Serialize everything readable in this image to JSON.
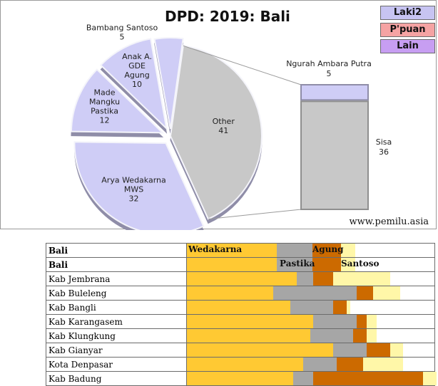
{
  "chart_data": [
    {
      "type": "pie",
      "title": "DPD: 2019: Bali",
      "legend": [
        {
          "label": "Laki2",
          "color": "#c7c4f2"
        },
        {
          "label": "P'puan",
          "color": "#f5a3a3"
        },
        {
          "label": "Lain",
          "color": "#c79ef2"
        }
      ],
      "slices": [
        {
          "name": "Arya Wedakarna MWS",
          "lines": [
            "Arya Wedakarna",
            "MWS"
          ],
          "value": 32,
          "color": "#cfcdf6"
        },
        {
          "name": "Made Mangku Pastika",
          "lines": [
            "Made",
            "Mangku",
            "Pastika"
          ],
          "value": 12,
          "color": "#cfcdf6"
        },
        {
          "name": "Anak A. GDE Agung",
          "lines": [
            "Anak A.",
            "GDE",
            "Agung"
          ],
          "value": 10,
          "color": "#cfcdf6"
        },
        {
          "name": "Bambang Santoso",
          "lines": [
            "Bambang Santoso"
          ],
          "value": 5,
          "color": "#cfcdf6"
        },
        {
          "name": "Other",
          "lines": [
            "Other"
          ],
          "value": 41,
          "color": "#c8c8c8"
        }
      ],
      "breakdown": [
        {
          "name": "Ngurah Ambara Putra",
          "value": 5,
          "color": "#cfcdf6"
        },
        {
          "name": "Sisa",
          "value": 36,
          "color": "#c8c8c8"
        }
      ],
      "source": "www.pemilu.asia"
    },
    {
      "type": "bar",
      "stacked": true,
      "header": {
        "col1": "Bali",
        "col2": "Bali"
      },
      "series": [
        {
          "name": "Wedakarna",
          "color": "#ffc933"
        },
        {
          "name": "Pastika",
          "color": "#a6a6a6"
        },
        {
          "name": "Agung",
          "color": "#cc6a00"
        },
        {
          "name": "Santoso",
          "color": "#fff7a8"
        }
      ],
      "totals_row": {
        "values": [
          32,
          12,
          10,
          5
        ]
      },
      "categories": [
        "Kab Jembrana",
        "Kab Buleleng",
        "Kab Bangli",
        "Kab Karangasem",
        "Kab Klungkung",
        "Kab Gianyar",
        "Kota Denpasar",
        "Kab Badung"
      ],
      "rows": [
        [
          33,
          5,
          6,
          17
        ],
        [
          26,
          25,
          5,
          8
        ],
        [
          31,
          13,
          4,
          1
        ],
        [
          38,
          13,
          3,
          3
        ],
        [
          37,
          13,
          4,
          3
        ],
        [
          44,
          10,
          7,
          4
        ],
        [
          35,
          10,
          8,
          12
        ],
        [
          32,
          6,
          33,
          4
        ]
      ],
      "scale_max": 75
    }
  ]
}
